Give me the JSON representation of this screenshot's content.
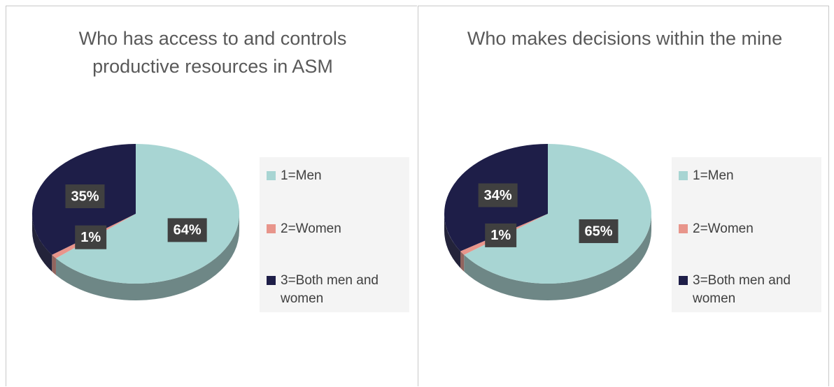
{
  "chart_data": [
    {
      "type": "pie",
      "title": "Who has access to and controls productive resources in ASM",
      "categories": [
        "1=Men",
        "2=Women",
        "3=Both men and women"
      ],
      "values": [
        64,
        1,
        35
      ],
      "value_labels": [
        "64%",
        "1%",
        "35%"
      ],
      "colors": [
        "#a8d5d3",
        "#e8958b",
        "#1e1e48"
      ],
      "legend": "right"
    },
    {
      "type": "pie",
      "title": "Who makes decisions within the mine",
      "categories": [
        "1=Men",
        "2=Women",
        "3=Both men and women"
      ],
      "values": [
        65,
        1,
        34
      ],
      "value_labels": [
        "65%",
        "1%",
        "34%"
      ],
      "colors": [
        "#a8d5d3",
        "#e8958b",
        "#1e1e48"
      ],
      "legend": "right"
    }
  ]
}
